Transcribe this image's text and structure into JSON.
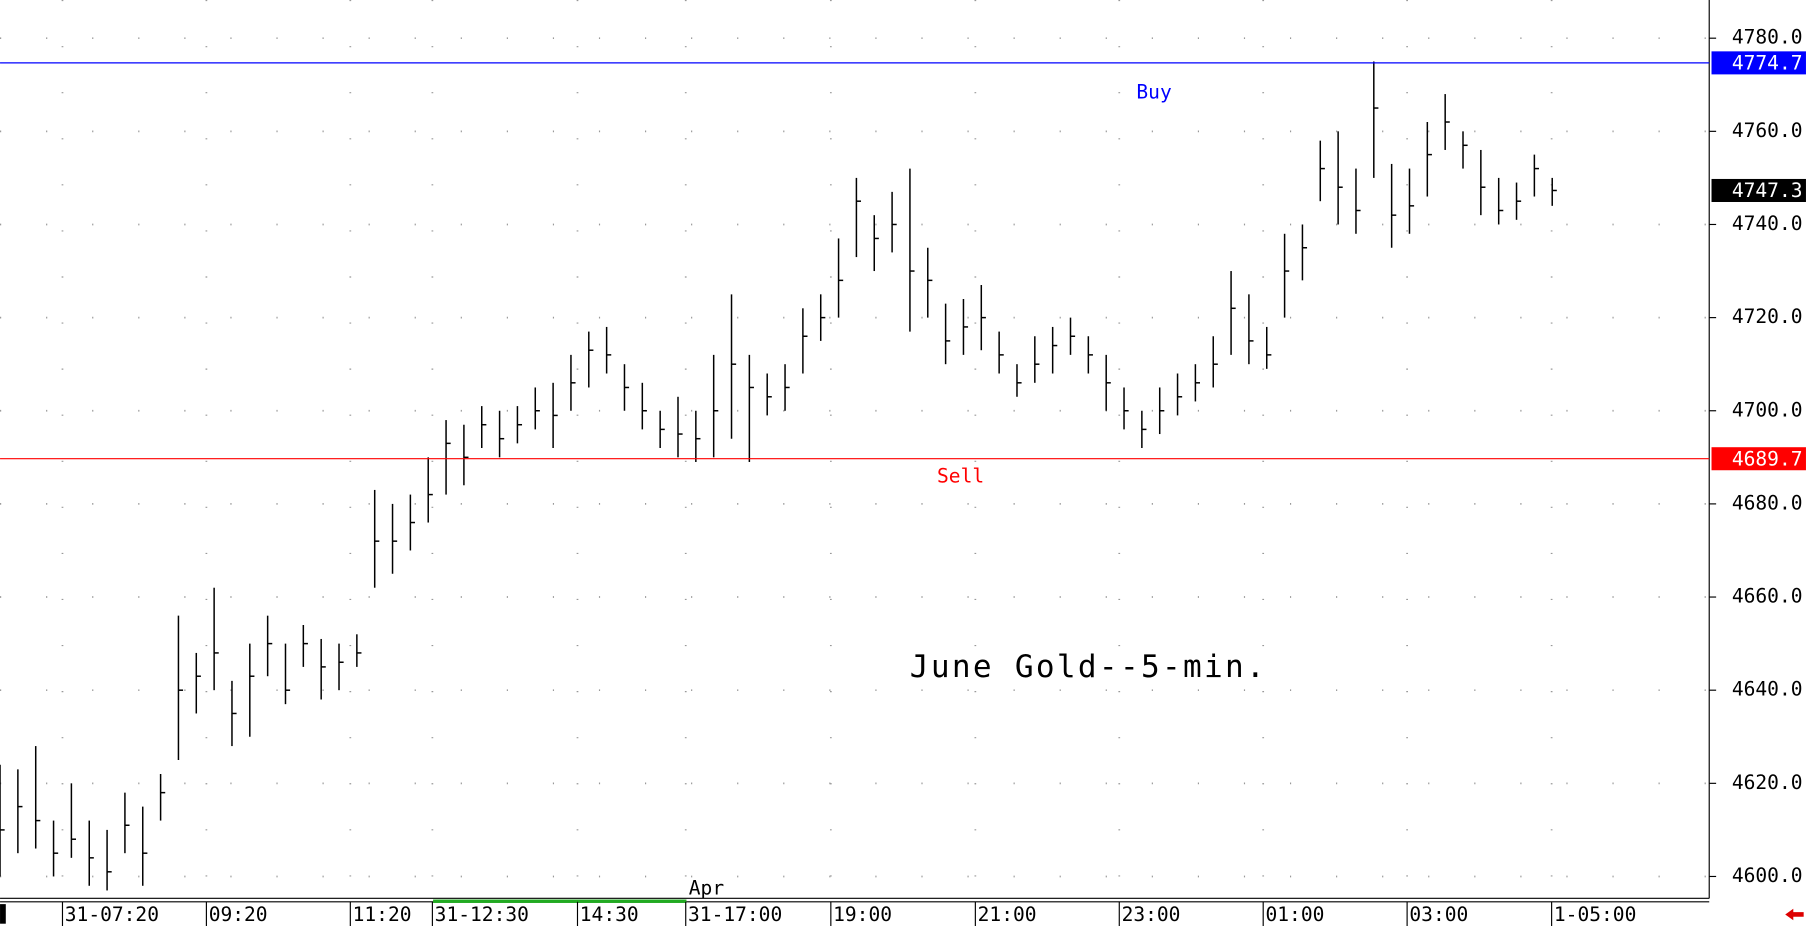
{
  "chart_data": {
    "type": "ohlc",
    "color": "#000000",
    "annotation": "June Gold--5-min.",
    "month_label": "Apr",
    "x": [
      0,
      3,
      6,
      9,
      12,
      15,
      18,
      21,
      24,
      27,
      30,
      33,
      36,
      39,
      42,
      45,
      48,
      51,
      54,
      57,
      60,
      63,
      66,
      69,
      72,
      75,
      78,
      81,
      84,
      87,
      90,
      93,
      96,
      99,
      102,
      105,
      108,
      111,
      114,
      117,
      120,
      123,
      126,
      129,
      132,
      135,
      138,
      141,
      144,
      147,
      150,
      153,
      156,
      159,
      162,
      165,
      168,
      171,
      174,
      177,
      180,
      183,
      186,
      189,
      192,
      195,
      198,
      201,
      204,
      207,
      210,
      213,
      216,
      219,
      222,
      225,
      228,
      231,
      234,
      237,
      240,
      243,
      246,
      249,
      252,
      255,
      258,
      261
    ],
    "high": [
      4624,
      4623,
      4628,
      4612,
      4620,
      4612,
      4610,
      4618,
      4615,
      4622,
      4656,
      4648,
      4662,
      4642,
      4650,
      4656,
      4650,
      4654,
      4651,
      4650,
      4652,
      4683,
      4680,
      4682,
      4690,
      4698,
      4697,
      4701,
      4700,
      4701,
      4705,
      4706,
      4712,
      4717,
      4718,
      4710,
      4706,
      4700,
      4703,
      4700,
      4712,
      4725,
      4712,
      4708,
      4710,
      4722,
      4725,
      4737,
      4750,
      4742,
      4747,
      4752,
      4735,
      4723,
      4724,
      4727,
      4717,
      4710,
      4716,
      4718,
      4720,
      4716,
      4712,
      4705,
      4700,
      4705,
      4708,
      4710,
      4716,
      4730,
      4725,
      4718,
      4738,
      4740,
      4758,
      4760,
      4752,
      4775,
      4753,
      4752,
      4762,
      4768,
      4760,
      4756,
      4750,
      4749,
      4755,
      4750
    ],
    "low": [
      4600,
      4605,
      4606,
      4600,
      4604,
      4598,
      4597,
      4605,
      4598,
      4612,
      4625,
      4635,
      4640,
      4628,
      4630,
      4643,
      4637,
      4645,
      4638,
      4640,
      4645,
      4662,
      4665,
      4670,
      4676,
      4682,
      4684,
      4692,
      4690,
      4693,
      4696,
      4692,
      4700,
      4705,
      4708,
      4700,
      4696,
      4692,
      4690,
      4689,
      4690,
      4694,
      4689,
      4699,
      4700,
      4708,
      4715,
      4720,
      4733,
      4730,
      4734,
      4717,
      4720,
      4710,
      4712,
      4713,
      4708,
      4703,
      4706,
      4708,
      4712,
      4708,
      4700,
      4696,
      4692,
      4695,
      4699,
      4702,
      4705,
      4712,
      4710,
      4709,
      4720,
      4728,
      4745,
      4740,
      4738,
      4750,
      4735,
      4738,
      4746,
      4756,
      4752,
      4742,
      4740,
      4741,
      4746,
      4744
    ],
    "close": [
      4610,
      4615,
      4612,
      4605,
      4608,
      4604,
      4601,
      4611,
      4605,
      4618,
      4640,
      4643,
      4648,
      4635,
      4643,
      4650,
      4640,
      4650,
      4645,
      4646,
      4648,
      4672,
      4672,
      4676,
      4682,
      4693,
      4690,
      4697,
      4694,
      4697,
      4700,
      4699,
      4706,
      4713,
      4712,
      4705,
      4700,
      4696,
      4695,
      4694,
      4700,
      4710,
      4705,
      4703,
      4705,
      4716,
      4720,
      4728,
      4745,
      4737,
      4740,
      4730,
      4728,
      4715,
      4718,
      4720,
      4712,
      4706,
      4710,
      4714,
      4716,
      4712,
      4706,
      4700,
      4696,
      4700,
      4703,
      4706,
      4710,
      4722,
      4715,
      4712,
      4730,
      4735,
      4752,
      4748,
      4743,
      4765,
      4742,
      4744,
      4755,
      4762,
      4757,
      4748,
      4743,
      4745,
      4752,
      4747.3
    ],
    "xlim": [
      0,
      287.4
    ],
    "xticks": [
      {
        "value": 10.5,
        "label": "31-07:20"
      },
      {
        "value": 34.7,
        "label": "09:20"
      },
      {
        "value": 58.9,
        "label": "11:20"
      },
      {
        "value": 72.7,
        "label": "31-12:30"
      },
      {
        "value": 97.1,
        "label": "14:30"
      },
      {
        "value": 115.3,
        "label": "31-17:00"
      },
      {
        "value": 139.7,
        "label": "19:00"
      },
      {
        "value": 164,
        "label": "21:00"
      },
      {
        "value": 188.2,
        "label": "23:00"
      },
      {
        "value": 212.4,
        "label": "01:00"
      },
      {
        "value": 236.6,
        "label": "03:00"
      },
      {
        "value": 260.9,
        "label": "1-05:00"
      }
    ],
    "ylim": [
      4595.3,
      4788.2
    ],
    "yticks": [
      {
        "value": 4600,
        "label": "4600.0"
      },
      {
        "value": 4620,
        "label": "4620.0"
      },
      {
        "value": 4640,
        "label": "4640.0"
      },
      {
        "value": 4660,
        "label": "4660.0"
      },
      {
        "value": 4680,
        "label": "4680.0"
      },
      {
        "value": 4700,
        "label": "4700.0"
      },
      {
        "value": 4720,
        "label": "4720.0"
      },
      {
        "value": 4740,
        "label": "4740.0"
      },
      {
        "value": 4760,
        "label": "4760.0"
      },
      {
        "value": 4780,
        "label": "4780.0"
      }
    ],
    "grid": true,
    "levels": [
      {
        "label": "Buy",
        "value": 4774.7,
        "color": "#0000ff"
      },
      {
        "label": "Sell",
        "value": 4689.7,
        "color": "#ff0000"
      }
    ],
    "last_price": {
      "value": 4747.3,
      "color": "#000000"
    }
  }
}
